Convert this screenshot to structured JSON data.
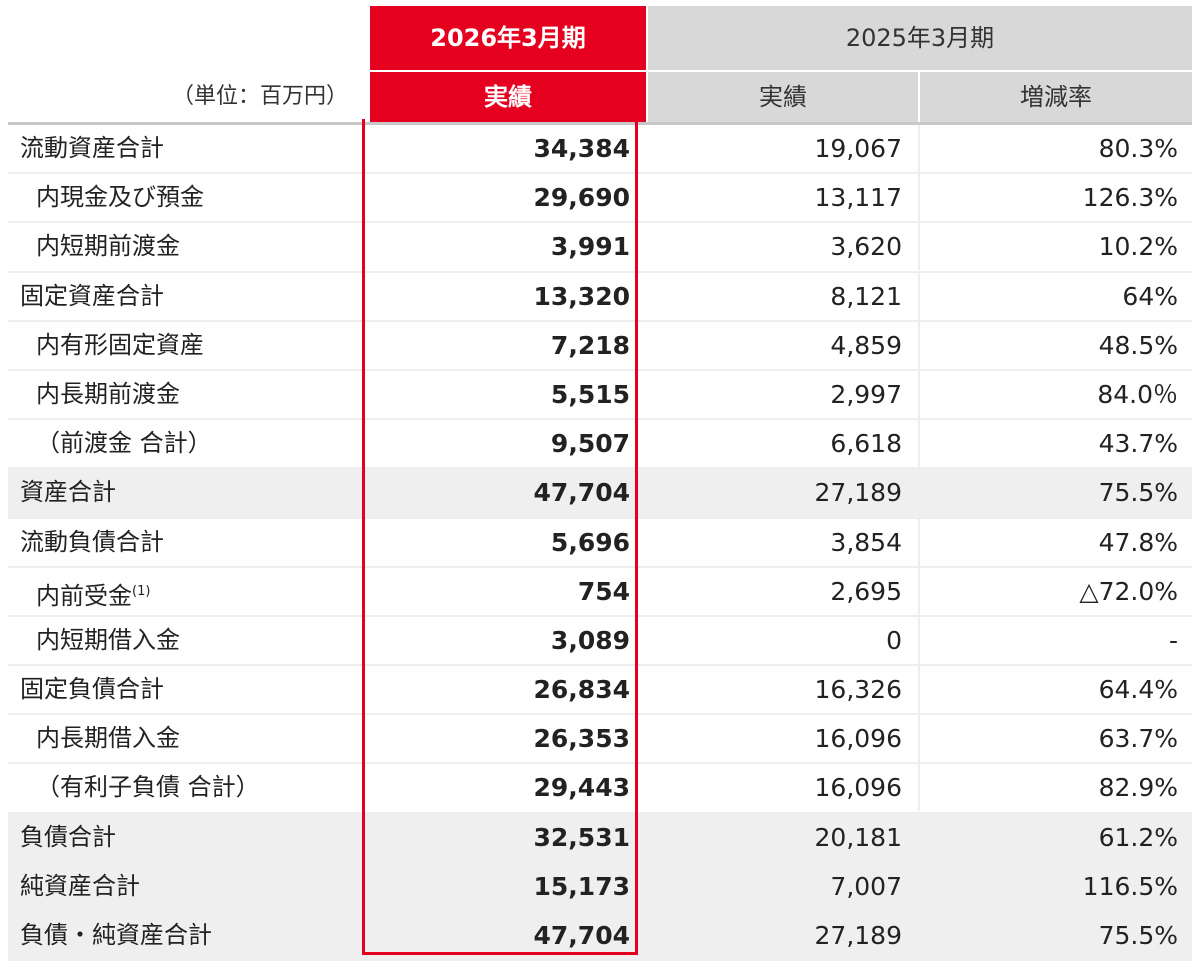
{
  "header": {
    "unit": "（単位：百万円）",
    "current_period": "2026年3月期",
    "current_col": "実績",
    "prev_period": "2025年3月期",
    "prev_col1": "実績",
    "prev_col2": "増減率"
  },
  "rows": [
    {
      "label": "流動資産合計",
      "cur": "34,384",
      "prev": "19,067",
      "rate": "80.3%"
    },
    {
      "label": "内現金及び預金",
      "cur": "29,690",
      "prev": "13,117",
      "rate": "126.3%"
    },
    {
      "label": "内短期前渡金",
      "cur": "3,991",
      "prev": "3,620",
      "rate": "10.2%"
    },
    {
      "label": "固定資産合計",
      "cur": "13,320",
      "prev": "8,121",
      "rate": "64%"
    },
    {
      "label": "内有形固定資産",
      "cur": "7,218",
      "prev": "4,859",
      "rate": "48.5%"
    },
    {
      "label": "内長期前渡金",
      "cur": "5,515",
      "prev": "2,997",
      "rate": "84.0％"
    },
    {
      "label": "（前渡金 合計）",
      "cur": "9,507",
      "prev": "6,618",
      "rate": "43.7%"
    },
    {
      "label": "資産合計",
      "cur": "47,704",
      "prev": "27,189",
      "rate": "75.5%"
    },
    {
      "label": "流動負債合計",
      "cur": "5,696",
      "prev": "3,854",
      "rate": "47.8%"
    },
    {
      "label": "内前受金",
      "sup": "(1)",
      "cur": "754",
      "prev": "2,695",
      "rate": "△72.0%"
    },
    {
      "label": "内短期借入金",
      "cur": "3,089",
      "prev": "0",
      "rate": "-"
    },
    {
      "label": "固定負債合計",
      "cur": "26,834",
      "prev": "16,326",
      "rate": "64.4%"
    },
    {
      "label": "内長期借入金",
      "cur": "26,353",
      "prev": "16,096",
      "rate": "63.7%"
    },
    {
      "label": "（有利子負債 合計）",
      "cur": "29,443",
      "prev": "16,096",
      "rate": "82.9%"
    },
    {
      "label": "負債合計",
      "cur": "32,531",
      "prev": "20,181",
      "rate": "61.2%"
    },
    {
      "label": "純資産合計",
      "cur": "15,173",
      "prev": "7,007",
      "rate": "116.5%"
    },
    {
      "label": "負債・純資産合計",
      "cur": "47,704",
      "prev": "27,189",
      "rate": "75.5%"
    }
  ],
  "colors": {
    "accent": "#e6001f",
    "header_gray": "#d8d8d8",
    "shade": "#efefef"
  }
}
